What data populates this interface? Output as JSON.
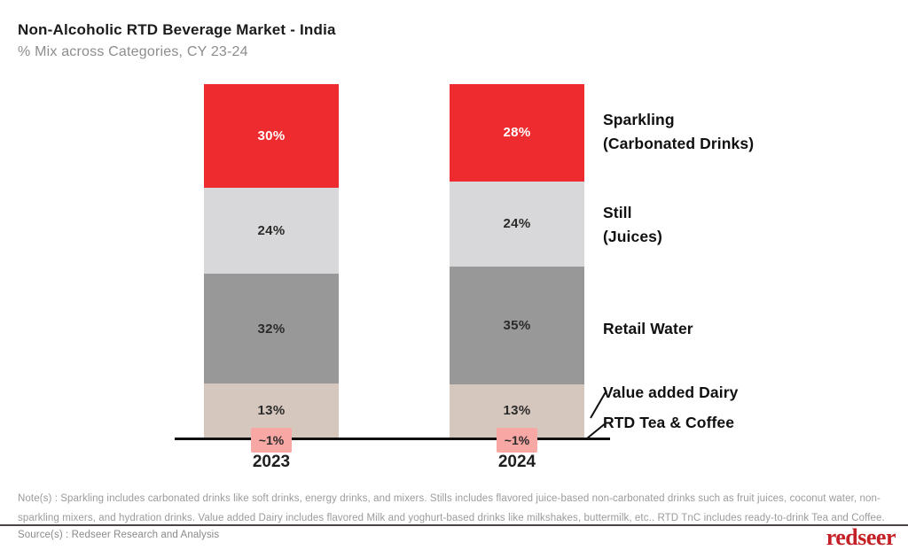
{
  "header": {
    "title": "Non-Alcoholic RTD Beverage Market - India",
    "subtitle": "% Mix across Categories, CY 23-24"
  },
  "chart_data": {
    "type": "bar",
    "stacked": true,
    "unit": "percent",
    "categories": [
      "2023",
      "2024"
    ],
    "series": [
      {
        "name": "Sparkling (Carbonated Drinks)",
        "values": [
          30,
          28
        ],
        "labels": [
          "30%",
          "28%"
        ],
        "color": "#EE2B2F",
        "label_color": "#ffffff",
        "label_style": "inside"
      },
      {
        "name": "Still (Juices)",
        "values": [
          24,
          24
        ],
        "labels": [
          "24%",
          "24%"
        ],
        "color": "#D8D8DA",
        "label_color": "#2b2b2b",
        "label_style": "inside"
      },
      {
        "name": "Retail Water",
        "values": [
          32,
          35
        ],
        "labels": [
          "32%",
          "35%"
        ],
        "color": "#989898",
        "label_color": "#2b2b2b",
        "label_style": "inside"
      },
      {
        "name": "Value added Dairy",
        "values": [
          13,
          13
        ],
        "labels": [
          "13%",
          "13%"
        ],
        "color": "#D6C7BE",
        "label_color": "#2b2b2b",
        "label_style": "inside"
      },
      {
        "name": "RTD Tea & Coffee",
        "values": [
          1,
          1
        ],
        "labels": [
          "~1%",
          "~1%"
        ],
        "color": "#F7A8A5",
        "label_color": "#2b2b2b",
        "label_style": "floating"
      }
    ],
    "ylim": [
      0,
      100
    ],
    "grid": false,
    "legend_position": "right",
    "axis_color": "#101010"
  },
  "legend": {
    "items": [
      {
        "line1": "Sparkling",
        "line2": "(Carbonated Drinks)"
      },
      {
        "line1": "Still",
        "line2": "(Juices)"
      },
      {
        "line1": "Retail Water",
        "line2": ""
      },
      {
        "line1": "Value added Dairy",
        "line2": ""
      },
      {
        "line1": "RTD Tea & Coffee",
        "line2": ""
      }
    ]
  },
  "footer": {
    "notes": "Note(s) : Sparkling includes carbonated drinks like soft drinks, energy drinks, and mixers. Stills includes flavored juice-based non-carbonated drinks such as fruit juices, coconut water, non-sparkling mixers, and hydration drinks. Value added Dairy includes flavored Milk and yoghurt-based drinks like milkshakes, buttermilk, etc.. RTD TnC includes ready-to-drink Tea and Coffee.",
    "source": "Source(s) : Redseer Research and Analysis",
    "logo_text": "redseer",
    "logo_color": "#C42127"
  }
}
